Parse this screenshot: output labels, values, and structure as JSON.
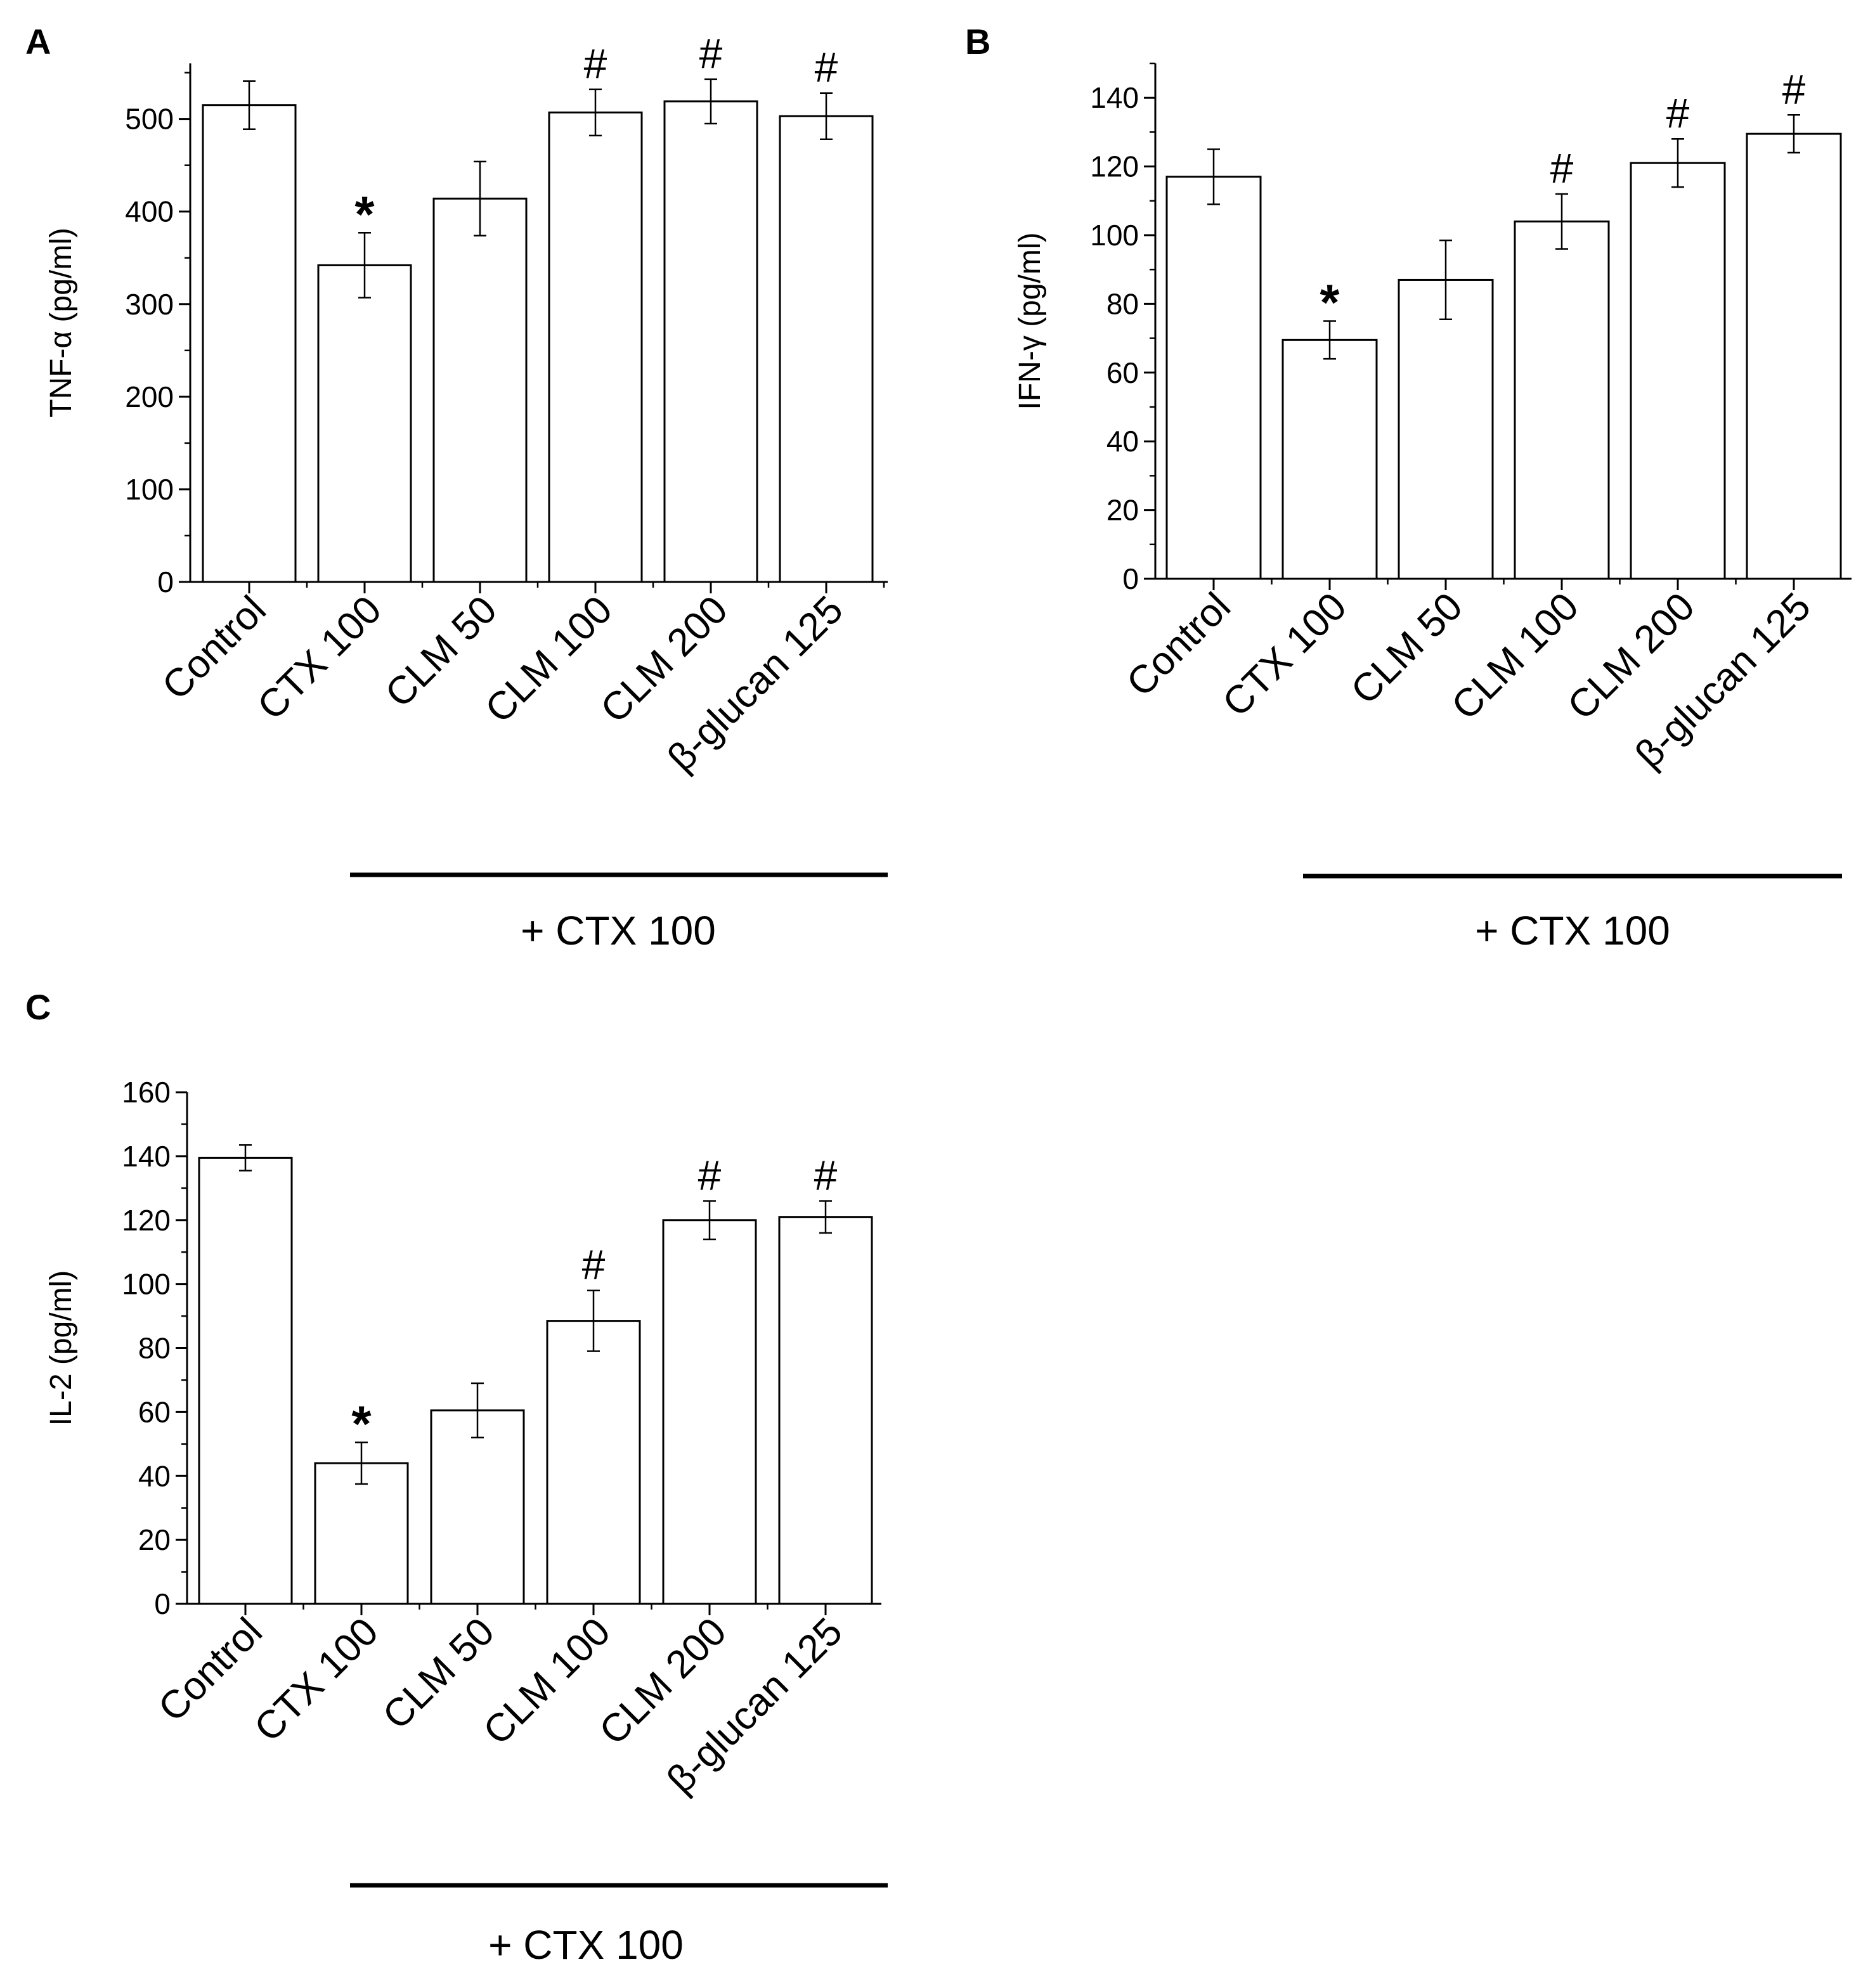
{
  "chart_data": [
    {
      "panel": "A",
      "type": "bar",
      "ylabel": "TNF-α (pg/ml)",
      "ylim": [
        0,
        560
      ],
      "yticks": [
        0,
        100,
        200,
        300,
        400,
        500
      ],
      "minor_tick_step": 50,
      "categories": [
        "Control",
        "CTX 100",
        "CLM 50",
        "CLM 100",
        "CLM 200",
        "β-glucan 125"
      ],
      "values": [
        515,
        342,
        414,
        507,
        519,
        503
      ],
      "errors": [
        26,
        35,
        40,
        25,
        24,
        25
      ],
      "annotations": [
        "",
        "*",
        "",
        "#",
        "#",
        "#"
      ],
      "group_label": "+ CTX 100",
      "group_span": [
        "CTX 100",
        "β-glucan 125"
      ]
    },
    {
      "panel": "B",
      "type": "bar",
      "ylabel": "IFN-γ (pg/ml)",
      "ylim": [
        0,
        150
      ],
      "yticks": [
        0,
        20,
        40,
        60,
        80,
        100,
        120,
        140
      ],
      "minor_tick_step": 10,
      "categories": [
        "Control",
        "CTX 100",
        "CLM 50",
        "CLM 100",
        "CLM 200",
        "β-glucan 125"
      ],
      "values": [
        117,
        69.5,
        87,
        104,
        121,
        129.5
      ],
      "errors": [
        8,
        5.5,
        11.5,
        8,
        7,
        5.5
      ],
      "annotations": [
        "",
        "*",
        "",
        "#",
        "#",
        "#"
      ],
      "group_label": "+ CTX 100",
      "group_span": [
        "CTX 100",
        "β-glucan 125"
      ]
    },
    {
      "panel": "C",
      "type": "bar",
      "ylabel": "IL-2 (pg/ml)",
      "ylim": [
        0,
        160
      ],
      "yticks": [
        0,
        20,
        40,
        60,
        80,
        100,
        120,
        140,
        160
      ],
      "minor_tick_step": 10,
      "categories": [
        "Control",
        "CTX 100",
        "CLM 50",
        "CLM 100",
        "CLM 200",
        "β-glucan 125"
      ],
      "values": [
        139.5,
        44,
        60.5,
        88.5,
        120,
        121
      ],
      "errors": [
        4,
        6.5,
        8.5,
        9.5,
        6,
        5
      ],
      "annotations": [
        "",
        "*",
        "",
        "#",
        "#",
        "#"
      ],
      "group_label": "+ CTX 100",
      "group_span": [
        "CTX 100",
        "β-glucan 125"
      ]
    }
  ]
}
